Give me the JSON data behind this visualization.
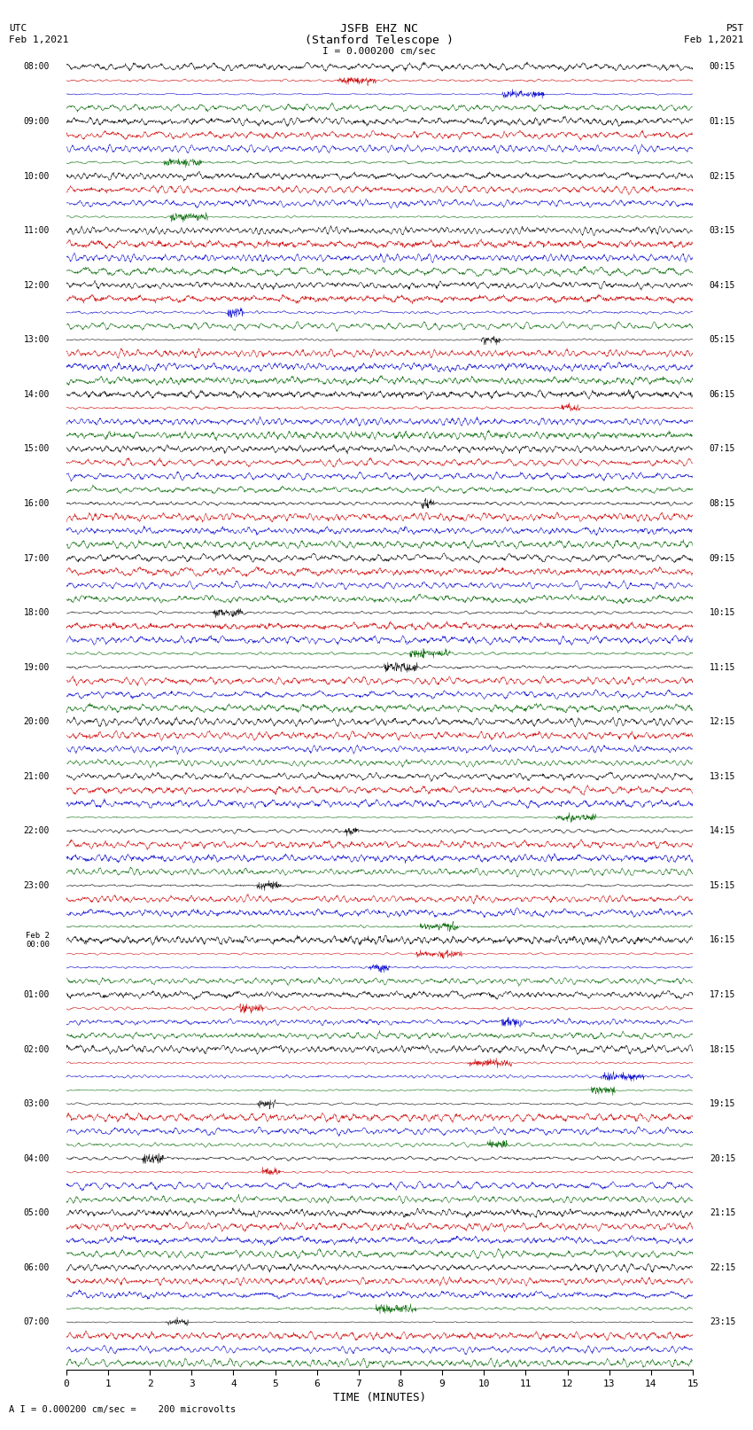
{
  "title_line1": "JSFB EHZ NC",
  "title_line2": "(Stanford Telescope )",
  "scale_label": "I = 0.000200 cm/sec",
  "utc_label_line1": "UTC",
  "utc_label_line2": "Feb 1,2021",
  "pst_label_line1": "PST",
  "pst_label_line2": "Feb 1,2021",
  "bottom_label": "A I = 0.000200 cm/sec =    200 microvolts",
  "xlabel": "TIME (MINUTES)",
  "trace_colors_cycle": [
    "#000000",
    "#cc0000",
    "#0000cc",
    "#006600"
  ],
  "background_color": "#ffffff",
  "left_hour_labels": [
    "08:00",
    "09:00",
    "10:00",
    "11:00",
    "12:00",
    "13:00",
    "14:00",
    "15:00",
    "16:00",
    "17:00",
    "18:00",
    "19:00",
    "20:00",
    "21:00",
    "22:00",
    "23:00",
    "Feb 2\n00:00",
    "01:00",
    "02:00",
    "03:00",
    "04:00",
    "05:00",
    "06:00",
    "07:00"
  ],
  "right_hour_labels": [
    "00:15",
    "01:15",
    "02:15",
    "03:15",
    "04:15",
    "05:15",
    "06:15",
    "07:15",
    "08:15",
    "09:15",
    "10:15",
    "11:15",
    "12:15",
    "13:15",
    "14:15",
    "15:15",
    "16:15",
    "17:15",
    "18:15",
    "19:15",
    "20:15",
    "21:15",
    "22:15",
    "23:15"
  ],
  "num_groups": 24,
  "traces_per_group": 4,
  "xlim": [
    0,
    15
  ],
  "xticks": [
    0,
    1,
    2,
    3,
    4,
    5,
    6,
    7,
    8,
    9,
    10,
    11,
    12,
    13,
    14,
    15
  ],
  "seed": 42
}
